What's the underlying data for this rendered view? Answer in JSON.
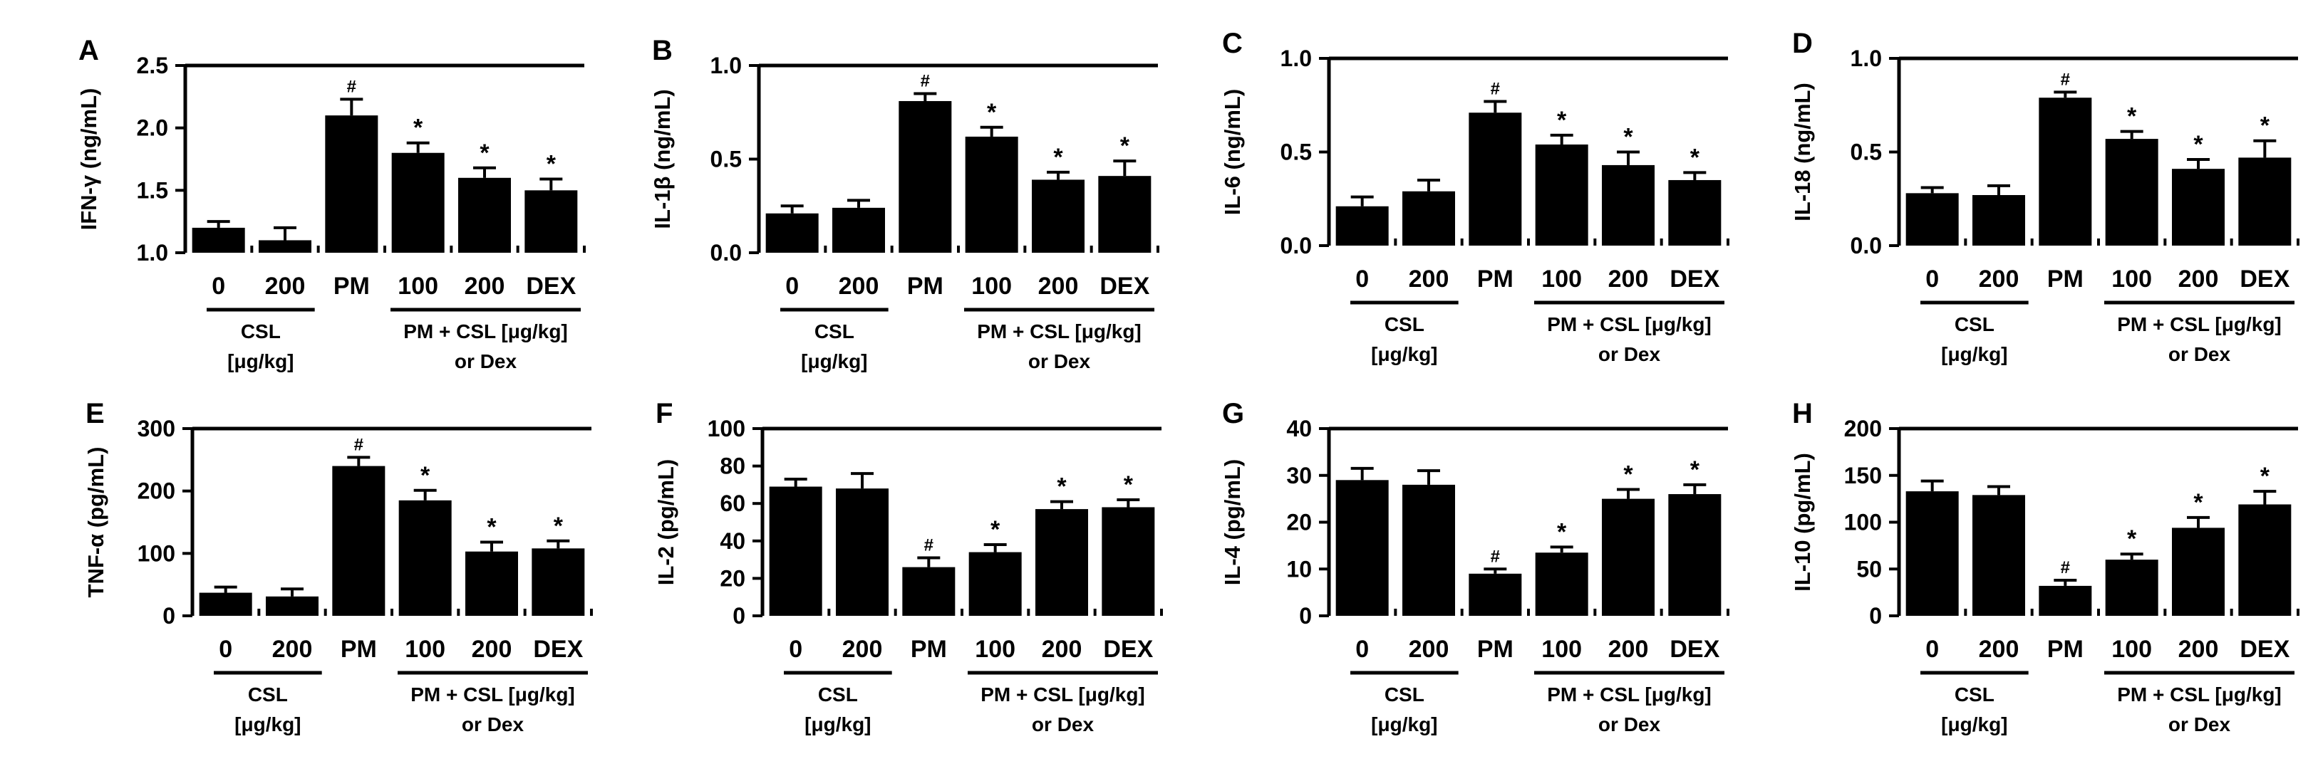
{
  "colors": {
    "bar": "#000000",
    "axis": "#000000",
    "background": "#ffffff"
  },
  "chart_data": [
    {
      "panel": "A",
      "type": "bar",
      "ylabel": "IFN-γ (ng/mL)",
      "ylim": [
        1.0,
        2.5
      ],
      "yticks": [
        "1.0",
        "1.5",
        "2.0",
        "2.5"
      ],
      "categories": [
        "0",
        "200",
        "PM",
        "100",
        "200",
        "DEX"
      ],
      "values": [
        1.2,
        1.1,
        2.1,
        1.8,
        1.6,
        1.5
      ],
      "errors": [
        0.05,
        0.1,
        0.13,
        0.08,
        0.08,
        0.09
      ],
      "marks": [
        "",
        "",
        "#",
        "*",
        "*",
        "*"
      ],
      "group_labels": [
        [
          "CSL",
          "[μg/kg]"
        ],
        [
          "PM + CSL [μg/kg]",
          "or Dex"
        ]
      ]
    },
    {
      "panel": "B",
      "type": "bar",
      "ylabel": "IL-1β (ng/mL)",
      "ylim": [
        0.0,
        1.0
      ],
      "yticks": [
        "0.0",
        "0.5",
        "1.0"
      ],
      "categories": [
        "0",
        "200",
        "PM",
        "100",
        "200",
        "DEX"
      ],
      "values": [
        0.21,
        0.24,
        0.81,
        0.62,
        0.39,
        0.41
      ],
      "errors": [
        0.04,
        0.04,
        0.04,
        0.05,
        0.04,
        0.08
      ],
      "marks": [
        "",
        "",
        "#",
        "*",
        "*",
        "*"
      ],
      "group_labels": [
        [
          "CSL",
          "[μg/kg]"
        ],
        [
          "PM + CSL [μg/kg]",
          "or Dex"
        ]
      ]
    },
    {
      "panel": "C",
      "type": "bar",
      "ylabel": "IL-6 (ng/mL)",
      "ylim": [
        0.0,
        1.0
      ],
      "yticks": [
        "0.0",
        "0.5",
        "1.0"
      ],
      "categories": [
        "0",
        "200",
        "PM",
        "100",
        "200",
        "DEX"
      ],
      "values": [
        0.21,
        0.29,
        0.71,
        0.54,
        0.43,
        0.35
      ],
      "errors": [
        0.05,
        0.06,
        0.06,
        0.05,
        0.07,
        0.04
      ],
      "marks": [
        "",
        "",
        "#",
        "*",
        "*",
        "*"
      ],
      "group_labels": [
        [
          "CSL",
          "[μg/kg]"
        ],
        [
          "PM + CSL [μg/kg]",
          "or Dex"
        ]
      ]
    },
    {
      "panel": "D",
      "type": "bar",
      "ylabel": "IL-18 (ng/mL)",
      "ylim": [
        0.0,
        1.0
      ],
      "yticks": [
        "0.0",
        "0.5",
        "1.0"
      ],
      "categories": [
        "0",
        "200",
        "PM",
        "100",
        "200",
        "DEX"
      ],
      "values": [
        0.28,
        0.27,
        0.79,
        0.57,
        0.41,
        0.47
      ],
      "errors": [
        0.03,
        0.05,
        0.03,
        0.04,
        0.05,
        0.09
      ],
      "marks": [
        "",
        "",
        "#",
        "*",
        "*",
        "*"
      ],
      "group_labels": [
        [
          "CSL",
          "[μg/kg]"
        ],
        [
          "PM + CSL [μg/kg]",
          "or Dex"
        ]
      ]
    },
    {
      "panel": "E",
      "type": "bar",
      "ylabel": "TNF-α (pg/mL)",
      "ylim": [
        0,
        300
      ],
      "yticks": [
        "0",
        "100",
        "200",
        "300"
      ],
      "categories": [
        "0",
        "200",
        "PM",
        "100",
        "200",
        "DEX"
      ],
      "values": [
        37,
        31,
        240,
        185,
        103,
        108
      ],
      "errors": [
        9,
        12,
        14,
        16,
        15,
        12
      ],
      "marks": [
        "",
        "",
        "#",
        "*",
        "*",
        "*"
      ],
      "group_labels": [
        [
          "CSL",
          "[μg/kg]"
        ],
        [
          "PM + CSL [μg/kg]",
          "or Dex"
        ]
      ]
    },
    {
      "panel": "F",
      "type": "bar",
      "ylabel": "IL-2 (pg/mL)",
      "ylim": [
        0,
        100
      ],
      "yticks": [
        "0",
        "20",
        "40",
        "60",
        "80",
        "100"
      ],
      "categories": [
        "0",
        "200",
        "PM",
        "100",
        "200",
        "DEX"
      ],
      "values": [
        69,
        68,
        26,
        34,
        57,
        58
      ],
      "errors": [
        4,
        8,
        5,
        4,
        4,
        4
      ],
      "marks": [
        "",
        "",
        "#",
        "*",
        "*",
        "*"
      ],
      "group_labels": [
        [
          "CSL",
          "[μg/kg]"
        ],
        [
          "PM + CSL [μg/kg]",
          "or Dex"
        ]
      ]
    },
    {
      "panel": "G",
      "type": "bar",
      "ylabel": "IL-4 (pg/mL)",
      "ylim": [
        0,
        40
      ],
      "yticks": [
        "0",
        "10",
        "20",
        "30",
        "40"
      ],
      "categories": [
        "0",
        "200",
        "PM",
        "100",
        "200",
        "DEX"
      ],
      "values": [
        29,
        28,
        9,
        13.5,
        25,
        26
      ],
      "errors": [
        2.5,
        3,
        1,
        1.2,
        2,
        2
      ],
      "marks": [
        "",
        "",
        "#",
        "*",
        "*",
        "*"
      ],
      "group_labels": [
        [
          "CSL",
          "[μg/kg]"
        ],
        [
          "PM + CSL [μg/kg]",
          "or Dex"
        ]
      ]
    },
    {
      "panel": "H",
      "type": "bar",
      "ylabel": "IL-10 (pg/mL)",
      "ylim": [
        0,
        200
      ],
      "yticks": [
        "0",
        "50",
        "100",
        "150",
        "200"
      ],
      "categories": [
        "0",
        "200",
        "PM",
        "100",
        "200",
        "DEX"
      ],
      "values": [
        133,
        129,
        32,
        60,
        94,
        119
      ],
      "errors": [
        11,
        9,
        6,
        6,
        11,
        14
      ],
      "marks": [
        "",
        "",
        "#",
        "*",
        "*",
        "*"
      ],
      "group_labels": [
        [
          "CSL",
          "[μg/kg]"
        ],
        [
          "PM + CSL [μg/kg]",
          "or Dex"
        ]
      ]
    }
  ]
}
